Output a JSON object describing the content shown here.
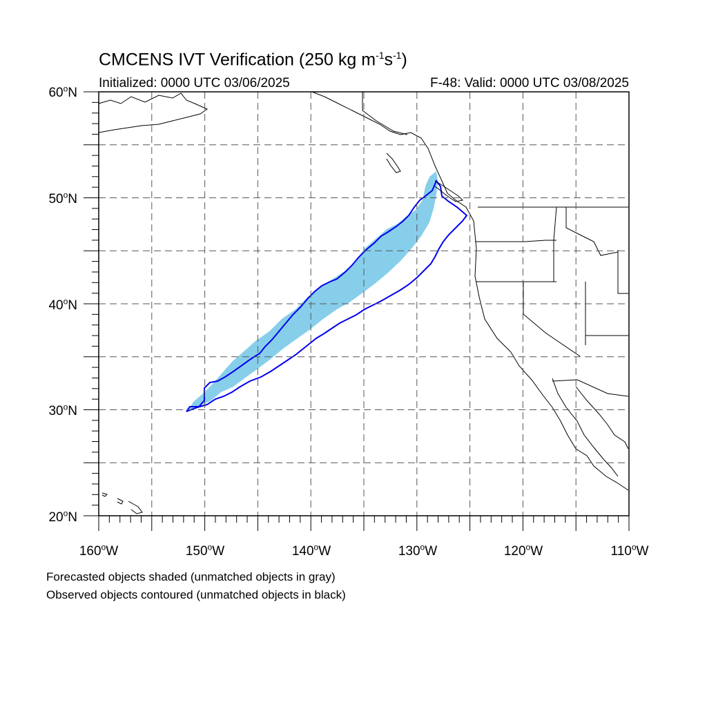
{
  "title": "CMCENS IVT Verification (250 kg m",
  "title_sup1": "-1",
  "title_mid": "s",
  "title_sup2": "-1",
  "title_end": ")",
  "initialized": "Initialized: 0000 UTC 03/06/2025",
  "valid": "F-48: Valid: 0000 UTC 03/08/2025",
  "lat_labels": [
    "60oN",
    "50oN",
    "40oN",
    "30oN",
    "20oN"
  ],
  "lat_values": [
    60,
    50,
    40,
    30,
    20
  ],
  "lon_labels": [
    "160oW",
    "150oW",
    "140oW",
    "130oW",
    "120oW",
    "110oW"
  ],
  "lon_values": [
    -160,
    -150,
    -140,
    -130,
    -120,
    -110
  ],
  "footnote_forecast": "Forecasted objects shaded (unmatched objects in gray)",
  "footnote_observed": "Observed objects contoured (unmatched objects in black)",
  "colors": {
    "forecast_fill": "#87ceeb",
    "observed_contour": "#0000ee",
    "coastline": "#000000",
    "grid": "#555555"
  }
}
